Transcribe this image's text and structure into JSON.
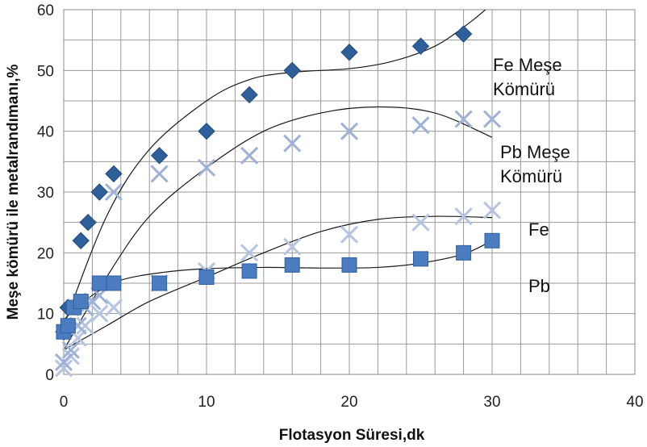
{
  "chart_data": {
    "type": "scatter",
    "title": "",
    "xlabel": "Flotasyon Süresi,dk",
    "ylabel": "Meşe kömürü ile metalrandımanı,%",
    "xlim": [
      0,
      40
    ],
    "ylim": [
      0,
      60
    ],
    "x_ticks": [
      0,
      10,
      20,
      30,
      40
    ],
    "y_ticks": [
      0,
      10,
      20,
      30,
      40,
      50,
      60
    ],
    "grid": true,
    "annotations": [
      {
        "lines": [
          "Fe  Meşe",
          "Kömürü"
        ],
        "series": "fe_mese"
      },
      {
        "lines": [
          "Pb Meşe",
          "Kömürü"
        ],
        "series": "pb_mese"
      },
      {
        "lines": [
          "Fe"
        ],
        "series": "fe"
      },
      {
        "lines": [
          "Pb"
        ],
        "series": "pb"
      }
    ],
    "series": [
      {
        "key": "fe_mese",
        "marker": "diamond",
        "color": "#2e5f9a",
        "points": [
          [
            0,
            7
          ],
          [
            0.3,
            11
          ],
          [
            1.2,
            22
          ],
          [
            1.7,
            25
          ],
          [
            2.5,
            30
          ],
          [
            3.5,
            33
          ],
          [
            6.7,
            36
          ],
          [
            10,
            40
          ],
          [
            13,
            46
          ],
          [
            16,
            50
          ],
          [
            20,
            53
          ],
          [
            25,
            54
          ],
          [
            28,
            56
          ]
        ],
        "trend": [
          [
            0,
            8
          ],
          [
            3,
            26
          ],
          [
            6,
            37
          ],
          [
            10,
            45
          ],
          [
            13,
            48.5
          ],
          [
            16,
            49.7
          ],
          [
            20,
            50.3
          ],
          [
            23,
            51.5
          ],
          [
            26,
            54
          ],
          [
            28.5,
            58
          ],
          [
            30,
            61
          ]
        ]
      },
      {
        "key": "pb_mese",
        "marker": "x",
        "color": "#9db2d6",
        "points": [
          [
            0,
            2
          ],
          [
            0.5,
            4
          ],
          [
            1,
            8
          ],
          [
            1.5,
            11
          ],
          [
            2,
            12
          ],
          [
            2.5,
            13
          ],
          [
            3.5,
            30
          ],
          [
            6.7,
            33
          ],
          [
            10,
            34
          ],
          [
            13,
            36
          ],
          [
            16,
            38
          ],
          [
            20,
            40
          ],
          [
            25,
            41
          ],
          [
            28,
            42
          ],
          [
            30,
            42
          ]
        ],
        "trend": [
          [
            0,
            4
          ],
          [
            3,
            16
          ],
          [
            6,
            26
          ],
          [
            10,
            34
          ],
          [
            14,
            40
          ],
          [
            18,
            43
          ],
          [
            22,
            44
          ],
          [
            26,
            43
          ],
          [
            30,
            39
          ]
        ]
      },
      {
        "key": "fe",
        "marker": "x",
        "color": "#b4c4e1",
        "points": [
          [
            0,
            1
          ],
          [
            0.5,
            3
          ],
          [
            1,
            6
          ],
          [
            1.5,
            8
          ],
          [
            2.5,
            10
          ],
          [
            3.5,
            11
          ],
          [
            6.7,
            15
          ],
          [
            10,
            17
          ],
          [
            13,
            20
          ],
          [
            16,
            21
          ],
          [
            20,
            23
          ],
          [
            25,
            25
          ],
          [
            28,
            26
          ],
          [
            30,
            27
          ]
        ],
        "trend": [
          [
            0,
            4
          ],
          [
            3,
            8
          ],
          [
            6,
            12
          ],
          [
            10,
            16
          ],
          [
            14,
            20
          ],
          [
            18,
            23.5
          ],
          [
            22,
            25.5
          ],
          [
            26,
            26
          ],
          [
            30,
            25.8
          ]
        ]
      },
      {
        "key": "pb",
        "marker": "square",
        "color": "#4a7cbf",
        "points": [
          [
            0,
            7
          ],
          [
            0.3,
            8
          ],
          [
            0.7,
            11
          ],
          [
            1.2,
            12
          ],
          [
            2.5,
            15
          ],
          [
            3.5,
            15
          ],
          [
            6.7,
            15
          ],
          [
            10,
            16
          ],
          [
            13,
            17
          ],
          [
            16,
            18
          ],
          [
            20,
            18
          ],
          [
            25,
            19
          ],
          [
            28,
            20
          ],
          [
            30,
            22
          ]
        ],
        "trend": [
          [
            0,
            9
          ],
          [
            2,
            13
          ],
          [
            4,
            15.5
          ],
          [
            7,
            16.8
          ],
          [
            10,
            17.4
          ],
          [
            14,
            17.6
          ],
          [
            18,
            17.5
          ],
          [
            22,
            17.6
          ],
          [
            25,
            18.3
          ],
          [
            28,
            19.8
          ],
          [
            30,
            22
          ]
        ]
      }
    ]
  }
}
